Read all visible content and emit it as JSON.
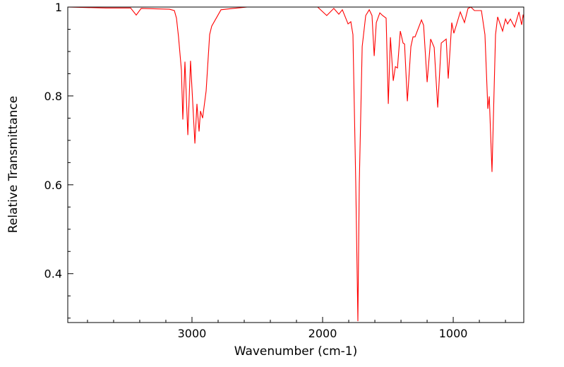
{
  "chart_data": {
    "type": "line",
    "title": "",
    "xlabel": "Wavenumber (cm-1)",
    "ylabel": "Relative Transmittance",
    "xlim": [
      3951,
      460
    ],
    "ylim": [
      0.29,
      1.0
    ],
    "x_reversed": true,
    "grid": false,
    "x_ticks": [
      3000,
      2000,
      1000
    ],
    "x_tick_labels": [
      "3000",
      "2000",
      "1000"
    ],
    "x_minor_step": 200,
    "y_ticks": [
      1,
      0.8,
      0.6,
      0.4
    ],
    "y_tick_labels": [
      "1",
      "0.8",
      "0.6",
      "0.4"
    ],
    "y_minor_step": 0.05,
    "series": [
      {
        "name": "spectrum",
        "color": "#ff0000",
        "points": [
          [
            3951,
            1.0
          ],
          [
            3659,
            0.998
          ],
          [
            3470,
            0.998
          ],
          [
            3427,
            0.982
          ],
          [
            3389,
            0.997
          ],
          [
            3173,
            0.995
          ],
          [
            3135,
            0.992
          ],
          [
            3119,
            0.975
          ],
          [
            3103,
            0.933
          ],
          [
            3081,
            0.858
          ],
          [
            3070,
            0.747
          ],
          [
            3054,
            0.877
          ],
          [
            3032,
            0.712
          ],
          [
            3011,
            0.879
          ],
          [
            2978,
            0.693
          ],
          [
            2962,
            0.782
          ],
          [
            2946,
            0.72
          ],
          [
            2935,
            0.766
          ],
          [
            2919,
            0.75
          ],
          [
            2892,
            0.811
          ],
          [
            2865,
            0.938
          ],
          [
            2849,
            0.957
          ],
          [
            2778,
            0.994
          ],
          [
            2686,
            0.997
          ],
          [
            2578,
            1.0
          ],
          [
            2038,
            1.0
          ],
          [
            1968,
            0.981
          ],
          [
            1914,
            0.997
          ],
          [
            1876,
            0.984
          ],
          [
            1849,
            0.994
          ],
          [
            1805,
            0.962
          ],
          [
            1784,
            0.967
          ],
          [
            1768,
            0.938
          ],
          [
            1746,
            0.603
          ],
          [
            1730,
            0.293
          ],
          [
            1719,
            0.603
          ],
          [
            1697,
            0.911
          ],
          [
            1670,
            0.981
          ],
          [
            1643,
            0.994
          ],
          [
            1622,
            0.981
          ],
          [
            1605,
            0.89
          ],
          [
            1589,
            0.965
          ],
          [
            1562,
            0.987
          ],
          [
            1541,
            0.981
          ],
          [
            1514,
            0.975
          ],
          [
            1497,
            0.782
          ],
          [
            1481,
            0.932
          ],
          [
            1459,
            0.834
          ],
          [
            1443,
            0.866
          ],
          [
            1427,
            0.863
          ],
          [
            1405,
            0.946
          ],
          [
            1384,
            0.919
          ],
          [
            1373,
            0.917
          ],
          [
            1351,
            0.788
          ],
          [
            1324,
            0.911
          ],
          [
            1308,
            0.933
          ],
          [
            1292,
            0.933
          ],
          [
            1243,
            0.971
          ],
          [
            1227,
            0.959
          ],
          [
            1200,
            0.831
          ],
          [
            1173,
            0.928
          ],
          [
            1146,
            0.909
          ],
          [
            1119,
            0.774
          ],
          [
            1092,
            0.919
          ],
          [
            1054,
            0.928
          ],
          [
            1038,
            0.839
          ],
          [
            1011,
            0.965
          ],
          [
            995,
            0.941
          ],
          [
            946,
            0.989
          ],
          [
            914,
            0.965
          ],
          [
            887,
            0.997
          ],
          [
            865,
            1.0
          ],
          [
            838,
            0.992
          ],
          [
            784,
            0.992
          ],
          [
            757,
            0.938
          ],
          [
            735,
            0.771
          ],
          [
            724,
            0.799
          ],
          [
            703,
            0.629
          ],
          [
            676,
            0.938
          ],
          [
            660,
            0.978
          ],
          [
            622,
            0.946
          ],
          [
            600,
            0.973
          ],
          [
            584,
            0.962
          ],
          [
            562,
            0.973
          ],
          [
            530,
            0.955
          ],
          [
            497,
            0.989
          ],
          [
            476,
            0.96
          ],
          [
            465,
            0.983
          ],
          [
            460,
            0.975
          ]
        ]
      }
    ]
  }
}
